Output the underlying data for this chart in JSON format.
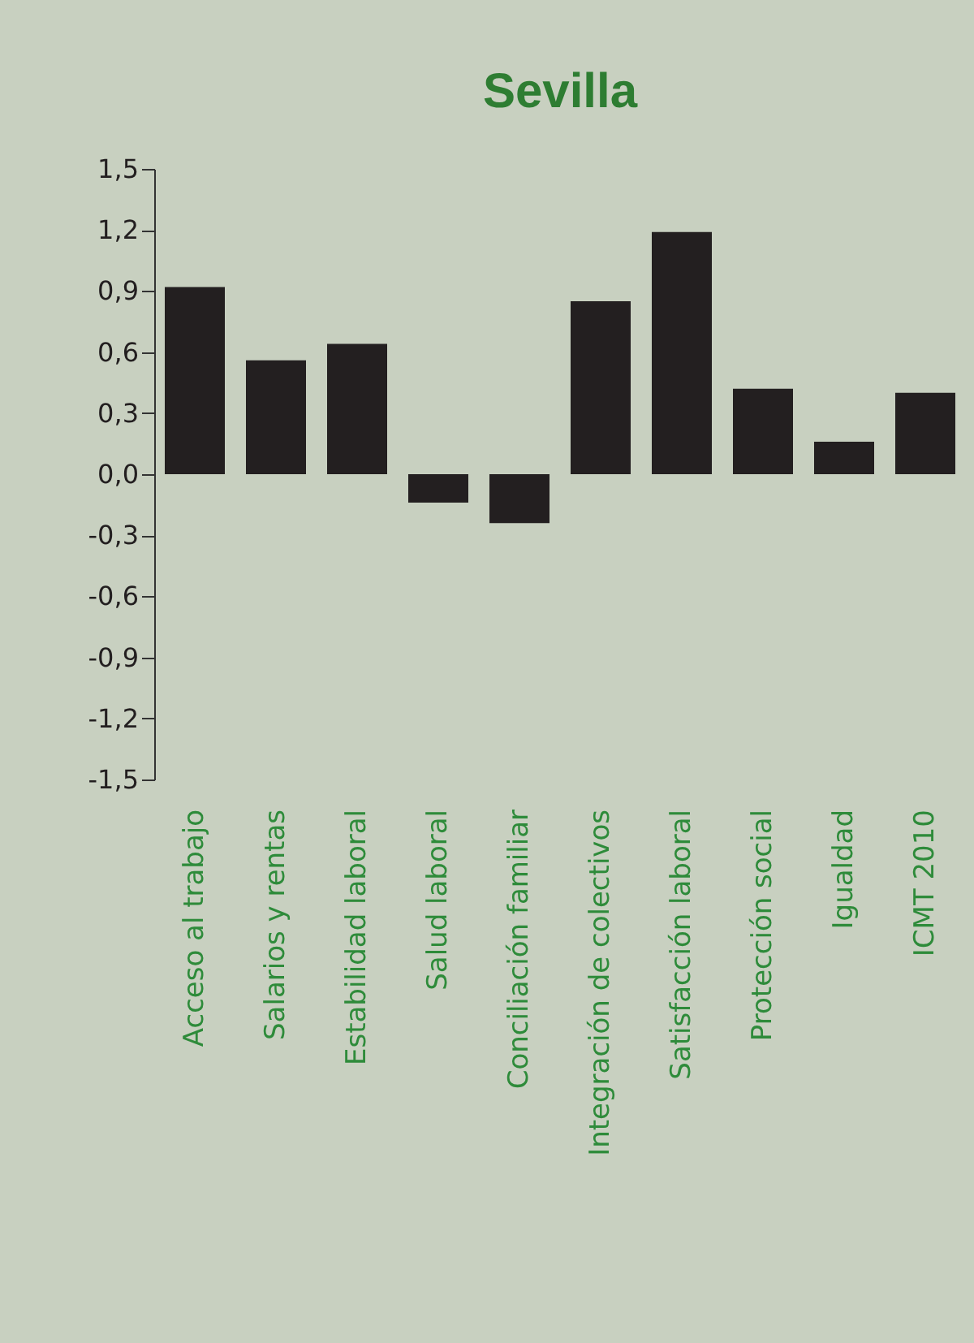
{
  "chart_data": {
    "type": "bar",
    "title": "Sevilla",
    "categories": [
      "Acceso al trabajo",
      "Salarios y rentas",
      "Estabilidad laboral",
      "Salud laboral",
      "Conciliación familiar",
      "Integración de colectivos",
      "Satisfacción laboral",
      "Protección social",
      "Igualdad",
      "ICMT 2010"
    ],
    "values": [
      0.92,
      0.56,
      0.64,
      -0.14,
      -0.24,
      0.85,
      1.19,
      0.42,
      0.16,
      0.4
    ],
    "color": "#231f20",
    "ylim": [
      -1.5,
      1.5
    ],
    "yticks": [
      {
        "value": -1.5,
        "label": "-1,5"
      },
      {
        "value": -1.2,
        "label": "-1,2"
      },
      {
        "value": -0.9,
        "label": "-0,9"
      },
      {
        "value": -0.6,
        "label": "-0,6"
      },
      {
        "value": -0.3,
        "label": "-0,3"
      },
      {
        "value": 0,
        "label": "0,0"
      },
      {
        "value": 0.3,
        "label": "0,3"
      },
      {
        "value": 0.6,
        "label": "0,6"
      },
      {
        "value": 0.9,
        "label": "0,9"
      },
      {
        "value": 1.2,
        "label": "1,2"
      },
      {
        "value": 1.5,
        "label": "1,5"
      }
    ],
    "grid": false
  }
}
